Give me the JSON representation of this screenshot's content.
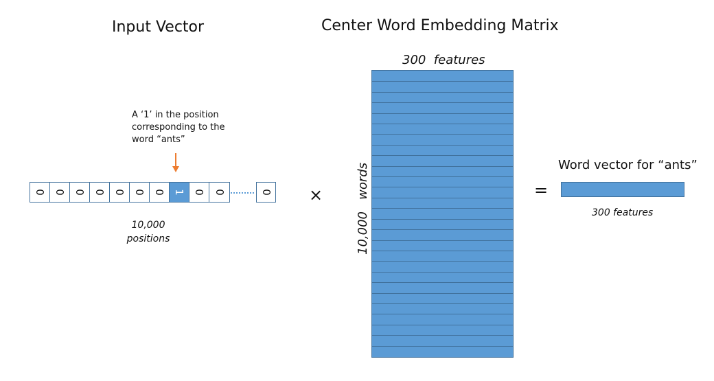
{
  "titles": {
    "input_vector": "Input Vector",
    "embedding_matrix": "Center Word Embedding Matrix"
  },
  "annotation": {
    "text": "A ‘1’ in the position\ncorresponding to the\nword “ants”"
  },
  "input_vector": {
    "cells": [
      "0",
      "0",
      "0",
      "0",
      "0",
      "0",
      "0",
      "1",
      "0",
      "0"
    ],
    "hot_index": 7,
    "last_cell": "0",
    "caption": "10,000\npositions"
  },
  "operators": {
    "multiply": "×",
    "equals": "="
  },
  "matrix": {
    "top_label": "300  features",
    "side_label": "10,000   words",
    "row_count": 27
  },
  "result": {
    "label": "Word vector for “ants”",
    "caption": "300 features"
  },
  "colors": {
    "fill": "#5b9bd5",
    "border": "#41719c",
    "arrow": "#ed7d31"
  }
}
